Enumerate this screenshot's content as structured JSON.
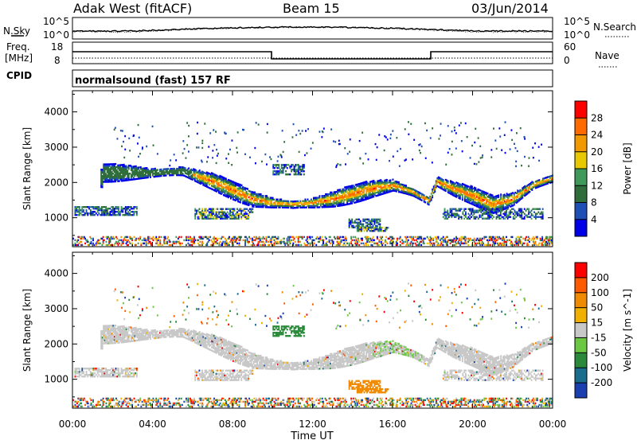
{
  "header": {
    "title": "Adak West (fitACF)",
    "beam": "Beam 15",
    "date": "03/Jun/2014"
  },
  "strips": {
    "nsky_label": "N.Sky",
    "nsearch_label": "N.Search",
    "noise_ticks": [
      "10^5",
      "10^0"
    ],
    "freq_label_1": "Freq.",
    "freq_label_2": "[MHz]",
    "freq_ticks": [
      "18",
      "8"
    ],
    "nave_label": "Nave",
    "nave_ticks": [
      "60",
      "0"
    ],
    "cpid_label": "CPID",
    "cpid_text": "normalsound (fast) 157 RF"
  },
  "colors": {
    "power": [
      "#0000e8",
      "#1e4fb4",
      "#2f6e3a",
      "#3f9a5a",
      "#e8c800",
      "#f09a00",
      "#ff6a00",
      "#ff0000"
    ],
    "velocity": [
      "#1a3fb0",
      "#1b6d8e",
      "#2a8a3a",
      "#6bc842",
      "#c8c8c8",
      "#f0b000",
      "#f08a00",
      "#ff5a00",
      "#ff0000"
    ]
  },
  "chart_data": [
    {
      "type": "heatmap",
      "name": "power-panel",
      "xlabel": "Time UT",
      "ylabel": "Slant Range [km]",
      "xlim": [
        0,
        24
      ],
      "ylim": [
        180,
        4600
      ],
      "yticks": [
        1000,
        2000,
        3000,
        4000
      ],
      "xticks": [
        "00:00",
        "04:00",
        "08:00",
        "12:00",
        "16:00",
        "20:00",
        "00:00"
      ],
      "colorbar": {
        "label": "Power [dB]",
        "ticks": [
          "28",
          "24",
          "20",
          "16",
          "12",
          "8",
          "4"
        ]
      },
      "main_echo_band_center_km": [
        {
          "t": 1.5,
          "r": 2250
        },
        {
          "t": 4,
          "r": 2250
        },
        {
          "t": 5.5,
          "r": 2300
        },
        {
          "t": 7,
          "r": 2000
        },
        {
          "t": 8,
          "r": 1750
        },
        {
          "t": 9,
          "r": 1500
        },
        {
          "t": 10,
          "r": 1400
        },
        {
          "t": 11,
          "r": 1350
        },
        {
          "t": 12,
          "r": 1400
        },
        {
          "t": 13,
          "r": 1500
        },
        {
          "t": 14,
          "r": 1650
        },
        {
          "t": 15,
          "r": 1800
        },
        {
          "t": 16,
          "r": 1900
        },
        {
          "t": 17,
          "r": 1700
        },
        {
          "t": 17.8,
          "r": 1450
        },
        {
          "t": 18.2,
          "r": 2000
        },
        {
          "t": 19,
          "r": 1800
        },
        {
          "t": 20,
          "r": 1600
        },
        {
          "t": 21,
          "r": 1350
        },
        {
          "t": 22,
          "r": 1500
        },
        {
          "t": 23,
          "r": 1900
        },
        {
          "t": 24,
          "r": 2100
        }
      ]
    },
    {
      "type": "heatmap",
      "name": "velocity-panel",
      "xlabel": "Time UT",
      "ylabel": "Slant Range [km]",
      "xlim": [
        0,
        24
      ],
      "ylim": [
        180,
        4600
      ],
      "yticks": [
        1000,
        2000,
        3000,
        4000
      ],
      "xticks": [
        "00:00",
        "04:00",
        "08:00",
        "12:00",
        "16:00",
        "20:00",
        "00:00"
      ],
      "colorbar": {
        "label": "Velocity [m s^-1]",
        "ticks": [
          "200",
          "100",
          "50",
          "15",
          "-15",
          "-50",
          "-100",
          "-200"
        ]
      }
    }
  ]
}
